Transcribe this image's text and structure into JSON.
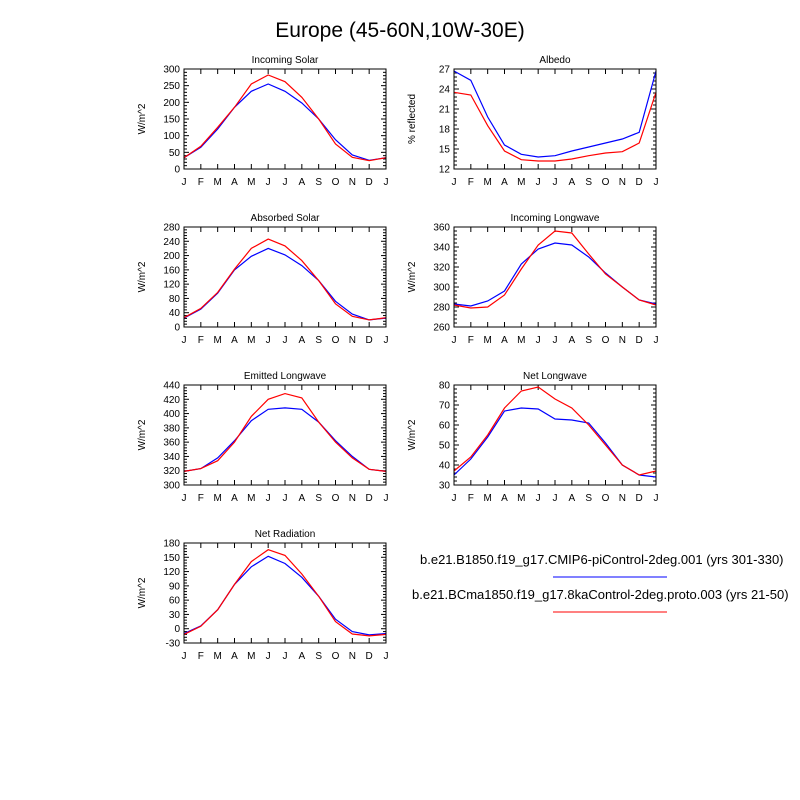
{
  "figure": {
    "title": "Europe (45-60N,10W-30E)"
  },
  "colors": {
    "series1": "#0000ff",
    "series2": "#ff0000"
  },
  "legend": [
    {
      "label": "b.e21.B1850.f19_g17.CMIP6-piControl-2deg.001 (yrs 301-330)",
      "color": "#0000ff"
    },
    {
      "label": "b.e21.BCma1850.f19_g17.8kaControl-2deg.proto.003 (yrs 21-50)",
      "color": "#ff0000"
    }
  ],
  "chart_data": [
    {
      "type": "line",
      "title": "Incoming Solar",
      "ylabel": "W/m^2",
      "categories": [
        "J",
        "F",
        "M",
        "A",
        "M",
        "J",
        "J",
        "A",
        "S",
        "O",
        "N",
        "D",
        "J"
      ],
      "ylim": [
        0,
        300
      ],
      "yticks": [
        0,
        50,
        100,
        150,
        200,
        250,
        300
      ],
      "series": [
        {
          "color": "#0000ff",
          "values": [
            34,
            65,
            120,
            185,
            233,
            255,
            233,
            198,
            150,
            88,
            42,
            26,
            34
          ]
        },
        {
          "color": "#ff0000",
          "values": [
            34,
            68,
            125,
            185,
            255,
            282,
            262,
            215,
            150,
            75,
            35,
            25,
            34
          ]
        }
      ]
    },
    {
      "type": "line",
      "title": "Albedo",
      "ylabel": "% reflected",
      "categories": [
        "J",
        "F",
        "M",
        "A",
        "M",
        "J",
        "J",
        "A",
        "S",
        "O",
        "N",
        "D",
        "J"
      ],
      "ylim": [
        12,
        27
      ],
      "yticks": [
        12,
        15,
        18,
        21,
        24,
        27
      ],
      "series": [
        {
          "color": "#0000ff",
          "values": [
            26.7,
            25.3,
            19.8,
            15.6,
            14.2,
            13.8,
            14.0,
            14.7,
            15.3,
            15.9,
            16.5,
            17.5,
            26.7
          ]
        },
        {
          "color": "#ff0000",
          "values": [
            23.5,
            23.1,
            18.5,
            14.7,
            13.4,
            13.2,
            13.2,
            13.5,
            14.0,
            14.4,
            14.6,
            15.9,
            23.5
          ]
        }
      ]
    },
    {
      "type": "line",
      "title": "Absorbed Solar",
      "ylabel": "W/m^2",
      "categories": [
        "J",
        "F",
        "M",
        "A",
        "M",
        "J",
        "J",
        "A",
        "S",
        "O",
        "N",
        "D",
        "J"
      ],
      "ylim": [
        0,
        280
      ],
      "yticks": [
        0,
        40,
        80,
        120,
        160,
        200,
        240,
        280
      ],
      "series": [
        {
          "color": "#0000ff",
          "values": [
            25,
            50,
            95,
            160,
            198,
            220,
            202,
            172,
            130,
            72,
            36,
            20,
            25
          ]
        },
        {
          "color": "#ff0000",
          "values": [
            26,
            52,
            97,
            162,
            220,
            246,
            227,
            186,
            130,
            65,
            30,
            20,
            26
          ]
        }
      ]
    },
    {
      "type": "line",
      "title": "Incoming Longwave",
      "ylabel": "W/m^2",
      "categories": [
        "J",
        "F",
        "M",
        "A",
        "M",
        "J",
        "J",
        "A",
        "S",
        "O",
        "N",
        "D",
        "J"
      ],
      "ylim": [
        260,
        360
      ],
      "yticks": [
        260,
        280,
        300,
        320,
        340,
        360
      ],
      "series": [
        {
          "color": "#0000ff",
          "values": [
            283,
            281,
            286,
            296,
            323,
            338,
            344,
            342,
            330,
            314,
            300,
            287,
            283
          ]
        },
        {
          "color": "#ff0000",
          "values": [
            282,
            279,
            280,
            292,
            318,
            342,
            356,
            354,
            333,
            313,
            300,
            287,
            282
          ]
        }
      ]
    },
    {
      "type": "line",
      "title": "Emitted Longwave",
      "ylabel": "W/m^2",
      "categories": [
        "J",
        "F",
        "M",
        "A",
        "M",
        "J",
        "J",
        "A",
        "S",
        "O",
        "N",
        "D",
        "J"
      ],
      "ylim": [
        300,
        440
      ],
      "yticks": [
        300,
        320,
        340,
        360,
        380,
        400,
        420,
        440
      ],
      "series": [
        {
          "color": "#0000ff",
          "values": [
            319,
            323,
            338,
            362,
            390,
            406,
            408,
            406,
            388,
            362,
            340,
            322,
            319
          ]
        },
        {
          "color": "#ff0000",
          "values": [
            319,
            323,
            334,
            360,
            396,
            420,
            428,
            422,
            388,
            360,
            338,
            322,
            319
          ]
        }
      ]
    },
    {
      "type": "line",
      "title": "Net Longwave",
      "ylabel": "W/m^2",
      "categories": [
        "J",
        "F",
        "M",
        "A",
        "M",
        "J",
        "J",
        "A",
        "S",
        "O",
        "N",
        "D",
        "J"
      ],
      "ylim": [
        30,
        80
      ],
      "yticks": [
        30,
        40,
        50,
        60,
        70,
        80
      ],
      "series": [
        {
          "color": "#0000ff",
          "values": [
            35,
            43,
            54,
            67,
            68.5,
            68,
            63,
            62.5,
            61,
            51,
            40,
            35,
            34
          ]
        },
        {
          "color": "#ff0000",
          "values": [
            37,
            44,
            55,
            68.5,
            77,
            79,
            73,
            68.5,
            60,
            50,
            40,
            35,
            37
          ]
        }
      ]
    },
    {
      "type": "line",
      "title": "Net Radiation",
      "ylabel": "W/m^2",
      "categories": [
        "J",
        "F",
        "M",
        "A",
        "M",
        "J",
        "J",
        "A",
        "S",
        "O",
        "N",
        "D",
        "J"
      ],
      "ylim": [
        -30,
        180
      ],
      "yticks": [
        -30,
        0,
        30,
        60,
        90,
        120,
        150,
        180
      ],
      "series": [
        {
          "color": "#0000ff",
          "values": [
            -10,
            6,
            40,
            93,
            130,
            152,
            137,
            108,
            68,
            20,
            -6,
            -13,
            -10
          ]
        },
        {
          "color": "#ff0000",
          "values": [
            -12,
            5,
            40,
            93,
            141,
            166,
            154,
            115,
            68,
            15,
            -11,
            -15,
            -12
          ]
        }
      ]
    }
  ]
}
